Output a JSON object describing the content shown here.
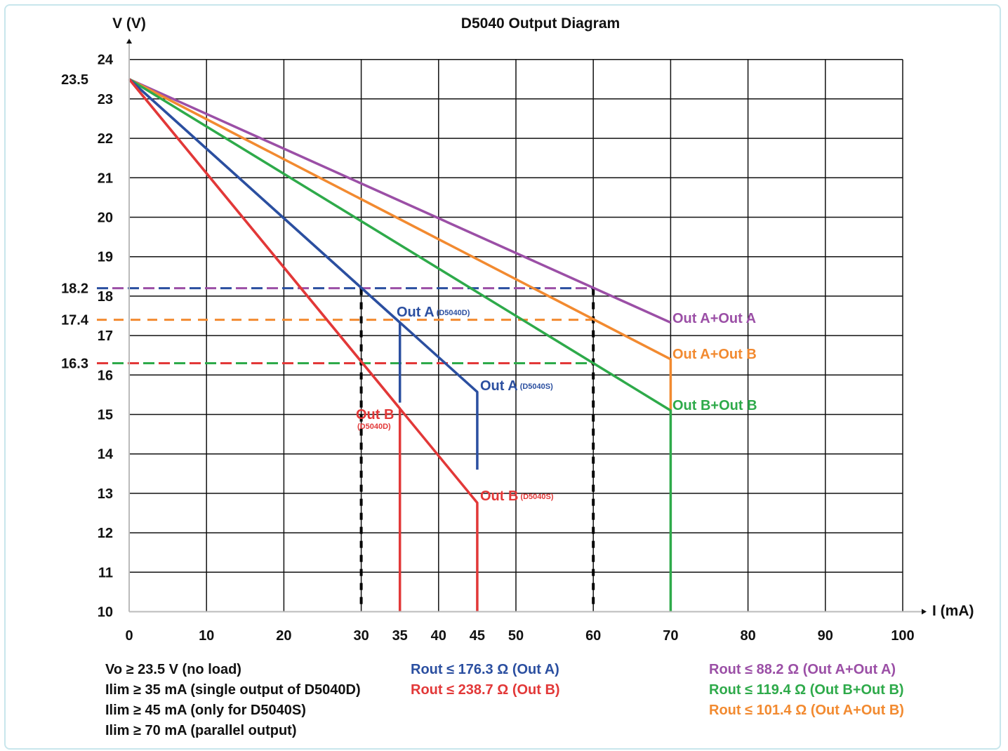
{
  "chart_data": {
    "type": "line",
    "title": "D5040 Output Diagram",
    "xlabel": "I (mA)",
    "ylabel": "V (V)",
    "xlim": [
      0,
      100
    ],
    "ylim": [
      10,
      24
    ],
    "x_ticks": [
      0,
      10,
      20,
      30,
      35,
      40,
      45,
      50,
      60,
      70,
      80,
      90,
      100
    ],
    "y_ticks": [
      10,
      11,
      12,
      13,
      14,
      15,
      16,
      17,
      18,
      19,
      20,
      21,
      22,
      23,
      24
    ],
    "extra_y_labels": [
      "23.5",
      "18.2",
      "17.4",
      "16.3"
    ],
    "grid": true,
    "series": [
      {
        "name": "Out A+Out A",
        "color": "#9b4fa6",
        "points": [
          [
            0,
            23.5
          ],
          [
            70,
            17.33
          ],
          [
            70,
            17.33
          ]
        ]
      },
      {
        "name": "Out A+Out B",
        "color": "#f28a30",
        "points": [
          [
            0,
            23.5
          ],
          [
            70,
            16.4
          ],
          [
            70,
            15.0
          ]
        ]
      },
      {
        "name": "Out B+Out B",
        "color": "#2eaa4a",
        "points": [
          [
            0,
            23.5
          ],
          [
            70,
            15.1
          ],
          [
            70,
            10
          ]
        ]
      },
      {
        "name": "Out A",
        "sub": "(D5040D)",
        "color": "#2b4fa0",
        "points": [
          [
            0,
            23.5
          ],
          [
            35,
            17.33
          ],
          [
            35,
            15.3
          ]
        ]
      },
      {
        "name": "Out A",
        "sub": "(D5040S)",
        "color": "#2b4fa0",
        "points": [
          [
            0,
            23.5
          ],
          [
            45,
            15.57
          ],
          [
            45,
            13.6
          ]
        ]
      },
      {
        "name": "Out B",
        "sub": "(D5040D)",
        "color": "#e23838",
        "points": [
          [
            0,
            23.5
          ],
          [
            35,
            15.15
          ],
          [
            35,
            10
          ]
        ]
      },
      {
        "name": "Out B",
        "sub": "(D5040S)",
        "color": "#e23838",
        "points": [
          [
            0,
            23.5
          ],
          [
            45,
            12.76
          ],
          [
            45,
            10
          ]
        ]
      }
    ],
    "reference_lines": [
      {
        "y": 18.2,
        "x_end": 60,
        "colors": [
          "#2b4fa0",
          "#9b4fa6"
        ]
      },
      {
        "y": 17.4,
        "x_end": 60,
        "colors": [
          "#f28a30"
        ]
      },
      {
        "y": 16.3,
        "x_end": 60,
        "colors": [
          "#e23838",
          "#2eaa4a"
        ]
      },
      {
        "x": 30,
        "y_end": 18.2,
        "colors": [
          "#000000"
        ]
      },
      {
        "x": 60,
        "y_end": 18.2,
        "colors": [
          "#000000"
        ]
      }
    ],
    "notes_left": [
      "Vo ≥ 23.5 V (no load)",
      "Ilim ≥ 35 mA (single output of D5040D)",
      "Ilim ≥ 45 mA (only for D5040S)",
      "Ilim ≥ 70 mA (parallel output)"
    ],
    "notes_mid": [
      {
        "text": "Rout ≤ 176.3 Ω (Out A)",
        "color": "#2b4fa0"
      },
      {
        "text": "Rout ≤ 238.7 Ω (Out B)",
        "color": "#e23838"
      }
    ],
    "notes_right": [
      {
        "text": "Rout ≤ 88.2 Ω (Out A+Out A)",
        "color": "#9b4fa6"
      },
      {
        "text": "Rout ≤ 119.4 Ω (Out B+Out B)",
        "color": "#2eaa4a"
      },
      {
        "text": "Rout ≤ 101.4 Ω (Out A+Out B)",
        "color": "#f28a30"
      }
    ]
  }
}
